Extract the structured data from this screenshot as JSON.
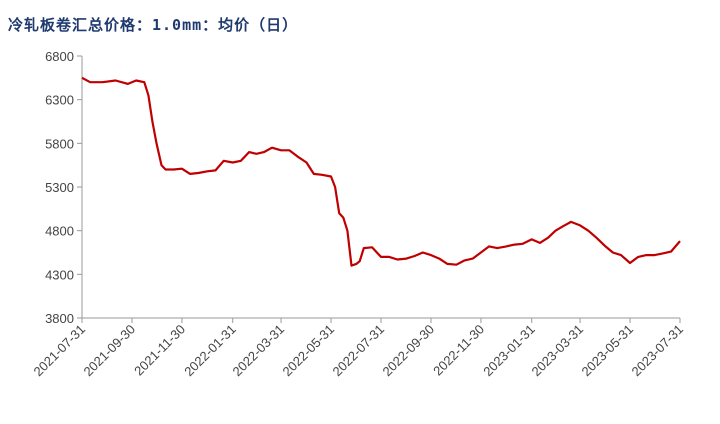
{
  "chart_data": {
    "type": "line",
    "title": "冷轧板卷汇总价格：1.0mm：均价（日）",
    "xlabel": "",
    "ylabel": "",
    "x_ticks": [
      "2021-07-31",
      "2021-09-30",
      "2021-11-30",
      "2022-01-31",
      "2022-03-31",
      "2022-05-31",
      "2022-07-31",
      "2022-09-30",
      "2022-11-30",
      "2023-01-31",
      "2023-03-31",
      "2023-05-31",
      "2023-07-31"
    ],
    "yticks": [
      3800,
      4300,
      4800,
      5300,
      5800,
      6300,
      6800
    ],
    "ylim": [
      3800,
      6800
    ],
    "grid": false,
    "legend": "none",
    "line_color": "#c00000",
    "series": [
      {
        "x": [
          "2021-07-31",
          "2021-08-10",
          "2021-08-25",
          "2021-09-10",
          "2021-09-25",
          "2021-10-05",
          "2021-10-15",
          "2021-10-20",
          "2021-10-25",
          "2021-10-30",
          "2021-11-05",
          "2021-11-10",
          "2021-11-20",
          "2021-11-30",
          "2021-12-10",
          "2021-12-20",
          "2021-12-31",
          "2022-01-10",
          "2022-01-20",
          "2022-01-31",
          "2022-02-10",
          "2022-02-20",
          "2022-03-01",
          "2022-03-10",
          "2022-03-20",
          "2022-03-31",
          "2022-04-10",
          "2022-04-20",
          "2022-05-01",
          "2022-05-10",
          "2022-05-20",
          "2022-05-31",
          "2022-06-05",
          "2022-06-10",
          "2022-06-15",
          "2022-06-20",
          "2022-06-25",
          "2022-07-01",
          "2022-07-05",
          "2022-07-10",
          "2022-07-20",
          "2022-07-31",
          "2022-08-10",
          "2022-08-20",
          "2022-08-31",
          "2022-09-10",
          "2022-09-20",
          "2022-09-30",
          "2022-10-10",
          "2022-10-20",
          "2022-10-31",
          "2022-11-10",
          "2022-11-20",
          "2022-11-30",
          "2022-12-10",
          "2022-12-20",
          "2022-12-31",
          "2023-01-10",
          "2023-01-20",
          "2023-01-31",
          "2023-02-10",
          "2023-02-20",
          "2023-03-01",
          "2023-03-10",
          "2023-03-20",
          "2023-03-31",
          "2023-04-10",
          "2023-04-20",
          "2023-05-01",
          "2023-05-10",
          "2023-05-20",
          "2023-05-31",
          "2023-06-10",
          "2023-06-20",
          "2023-06-30",
          "2023-07-10",
          "2023-07-20",
          "2023-07-31"
        ],
        "values": [
          6550,
          6500,
          6500,
          6520,
          6480,
          6520,
          6500,
          6350,
          6050,
          5800,
          5550,
          5500,
          5500,
          5510,
          5450,
          5460,
          5480,
          5490,
          5600,
          5580,
          5600,
          5700,
          5680,
          5700,
          5750,
          5720,
          5720,
          5650,
          5580,
          5450,
          5440,
          5420,
          5300,
          5000,
          4950,
          4800,
          4400,
          4420,
          4450,
          4600,
          4610,
          4500,
          4500,
          4470,
          4480,
          4510,
          4550,
          4520,
          4480,
          4420,
          4410,
          4460,
          4480,
          4550,
          4620,
          4600,
          4620,
          4640,
          4650,
          4700,
          4660,
          4720,
          4800,
          4850,
          4900,
          4860,
          4800,
          4720,
          4620,
          4550,
          4520,
          4430,
          4500,
          4520,
          4520,
          4540,
          4560,
          4680
        ]
      }
    ]
  }
}
